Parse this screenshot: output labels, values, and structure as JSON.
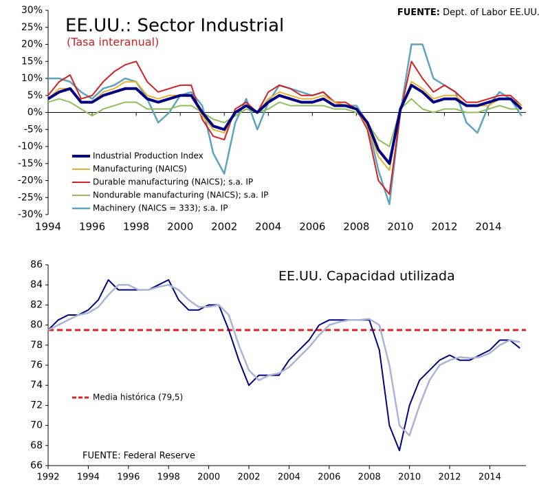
{
  "chart_data": [
    {
      "type": "line",
      "title": "EE.UU.: Sector Industrial",
      "subtitle": "(Tasa interanual)",
      "source_label": "FUENTE:",
      "source": "Dept. of Labor EE.UU.",
      "legend": "lower left",
      "xlim": [
        1994,
        2015.7
      ],
      "xticks": [
        1994,
        1996,
        1998,
        2000,
        2002,
        2004,
        2006,
        2008,
        2010,
        2012,
        2014
      ],
      "ylim": [
        -30,
        30
      ],
      "yticks": [
        {
          "value": -30,
          "label": "-30%"
        },
        {
          "value": -25,
          "label": "-25%"
        },
        {
          "value": -20,
          "label": "-20%"
        },
        {
          "value": -15,
          "label": "-15%"
        },
        {
          "value": -10,
          "label": "-10%"
        },
        {
          "value": -5,
          "label": "-5%"
        },
        {
          "value": 0,
          "label": "0%"
        },
        {
          "value": 5,
          "label": "5%"
        },
        {
          "value": 10,
          "label": "10%"
        },
        {
          "value": 15,
          "label": "15%"
        },
        {
          "value": 20,
          "label": "20%"
        },
        {
          "value": 25,
          "label": "25%"
        },
        {
          "value": 30,
          "label": "30%"
        }
      ],
      "x": [
        1994,
        1994.5,
        1995,
        1995.5,
        1996,
        1996.5,
        1997,
        1997.5,
        1998,
        1998.5,
        1999,
        1999.5,
        2000,
        2000.5,
        2001,
        2001.5,
        2002,
        2002.5,
        2003,
        2003.5,
        2004,
        2004.5,
        2005,
        2005.5,
        2006,
        2006.5,
        2007,
        2007.5,
        2008,
        2008.5,
        2009,
        2009.5,
        2010,
        2010.5,
        2011,
        2011.5,
        2012,
        2012.5,
        2013,
        2013.5,
        2014,
        2014.5,
        2015,
        2015.5
      ],
      "series": [
        {
          "name": "Industrial Production Index",
          "color": "#000080",
          "width": 4,
          "values": [
            4,
            6,
            7,
            3,
            3,
            5,
            6,
            7,
            7,
            4,
            3,
            4,
            5,
            5,
            0,
            -4,
            -5,
            0,
            2,
            0,
            3,
            5,
            4,
            3,
            3,
            4,
            2,
            2,
            1,
            -3,
            -11,
            -15,
            1,
            8,
            6,
            3,
            4,
            4,
            2,
            2,
            3,
            4,
            4,
            1
          ]
        },
        {
          "name": "Manufacturing (NAICS)",
          "color": "#e8b030",
          "width": 2,
          "values": [
            4,
            7,
            7,
            3,
            3,
            6,
            7,
            9,
            9,
            5,
            4,
            5,
            5,
            5,
            -1,
            -5,
            -6,
            0,
            2,
            0,
            4,
            6,
            5,
            4,
            4,
            5,
            3,
            2,
            1,
            -4,
            -13,
            -17,
            1,
            9,
            7,
            4,
            5,
            5,
            2,
            2,
            2,
            4,
            4,
            2
          ]
        },
        {
          "name": "Durable manufacturing (NAICS); s.a. IP",
          "color": "#d42020",
          "width": 2,
          "values": [
            5,
            9,
            11,
            4,
            5,
            9,
            12,
            14,
            15,
            9,
            6,
            7,
            8,
            8,
            -2,
            -7,
            -8,
            1,
            3,
            0,
            6,
            8,
            7,
            5,
            5,
            6,
            3,
            3,
            1,
            -5,
            -20,
            -24,
            0,
            15,
            10,
            6,
            8,
            6,
            3,
            3,
            4,
            5,
            5,
            2
          ]
        },
        {
          "name": "Nondurable manufacturing (NAICS); s.a. IP",
          "color": "#8fbf5a",
          "width": 2,
          "values": [
            3,
            4,
            3,
            1,
            -1,
            1,
            2,
            3,
            3,
            1,
            1,
            1,
            2,
            2,
            0,
            -2,
            -3,
            -1,
            1,
            0,
            1,
            3,
            2,
            2,
            2,
            2,
            1,
            1,
            0,
            -3,
            -8,
            -10,
            1,
            4,
            1,
            0,
            1,
            1,
            0,
            0,
            1,
            2,
            1,
            1
          ]
        },
        {
          "name": "Machinery  (NAICS = 333); s.a. IP",
          "color": "#5ba3bf",
          "width": 2.5,
          "values": [
            10,
            10,
            9,
            6,
            4,
            7,
            8,
            10,
            9,
            4,
            -3,
            0,
            5,
            6,
            2,
            -12,
            -18,
            -3,
            4,
            -5,
            3,
            8,
            7,
            6,
            5,
            6,
            3,
            2,
            2,
            -3,
            -17,
            -27,
            0,
            20,
            20,
            10,
            8,
            6,
            -3,
            -6,
            2,
            6,
            4,
            -1
          ]
        }
      ]
    },
    {
      "type": "line",
      "title": "EE.UU. Capacidad utilizada",
      "source": "FUENTE: Federal Reserve",
      "legend": "lower left",
      "xlim": [
        1992,
        2015.8
      ],
      "xticks": [
        1992,
        1994,
        1996,
        1998,
        2000,
        2002,
        2004,
        2006,
        2008,
        2010,
        2012,
        2014
      ],
      "ylim": [
        66,
        86
      ],
      "yticks": [
        66,
        68,
        70,
        72,
        74,
        76,
        78,
        80,
        82,
        84,
        86
      ],
      "hline": {
        "value": 79.5,
        "label": "Media histórica (79,5)",
        "color": "#e02020"
      },
      "x": [
        1992,
        1992.5,
        1993,
        1993.5,
        1994,
        1994.5,
        1995,
        1995.5,
        1996,
        1996.5,
        1997,
        1997.5,
        1998,
        1998.5,
        1999,
        1999.5,
        2000,
        2000.5,
        2001,
        2001.5,
        2002,
        2002.5,
        2003,
        2003.5,
        2004,
        2004.5,
        2005,
        2005.5,
        2006,
        2006.5,
        2007,
        2007.5,
        2008,
        2008.5,
        2009,
        2009.5,
        2010,
        2010.5,
        2011,
        2011.5,
        2012,
        2012.5,
        2013,
        2013.5,
        2014,
        2014.5,
        2015,
        2015.5
      ],
      "series": [
        {
          "color": "#a9b4d4",
          "width": 2.5,
          "values": [
            79.5,
            80,
            80.5,
            81,
            81.2,
            81.8,
            83,
            84,
            84,
            83.5,
            83.5,
            83.8,
            84,
            83.5,
            82.5,
            81.8,
            81.8,
            82,
            81,
            78,
            75.5,
            74.5,
            75,
            75.2,
            75.8,
            76.8,
            77.8,
            79,
            80,
            80.3,
            80.5,
            80.5,
            80.6,
            80,
            76,
            70,
            69,
            72,
            74.5,
            76,
            76.5,
            76.8,
            76.7,
            76.8,
            77.2,
            78,
            78.5,
            78.3
          ]
        },
        {
          "color": "#000080",
          "width": 2,
          "values": [
            79.5,
            80.5,
            81,
            81,
            81.5,
            82.5,
            84.5,
            83.5,
            83.5,
            83.5,
            83.5,
            84,
            84.5,
            82.5,
            81.5,
            81.5,
            82,
            82,
            79.5,
            76.5,
            74,
            75,
            75,
            75,
            76.5,
            77.5,
            78.5,
            80,
            80.5,
            80.5,
            80.5,
            80.5,
            80.5,
            77.5,
            70,
            67.5,
            72,
            74.5,
            75.5,
            76.5,
            77,
            76.5,
            76.5,
            77,
            77.5,
            78.5,
            78.5,
            77.7
          ]
        }
      ]
    }
  ]
}
